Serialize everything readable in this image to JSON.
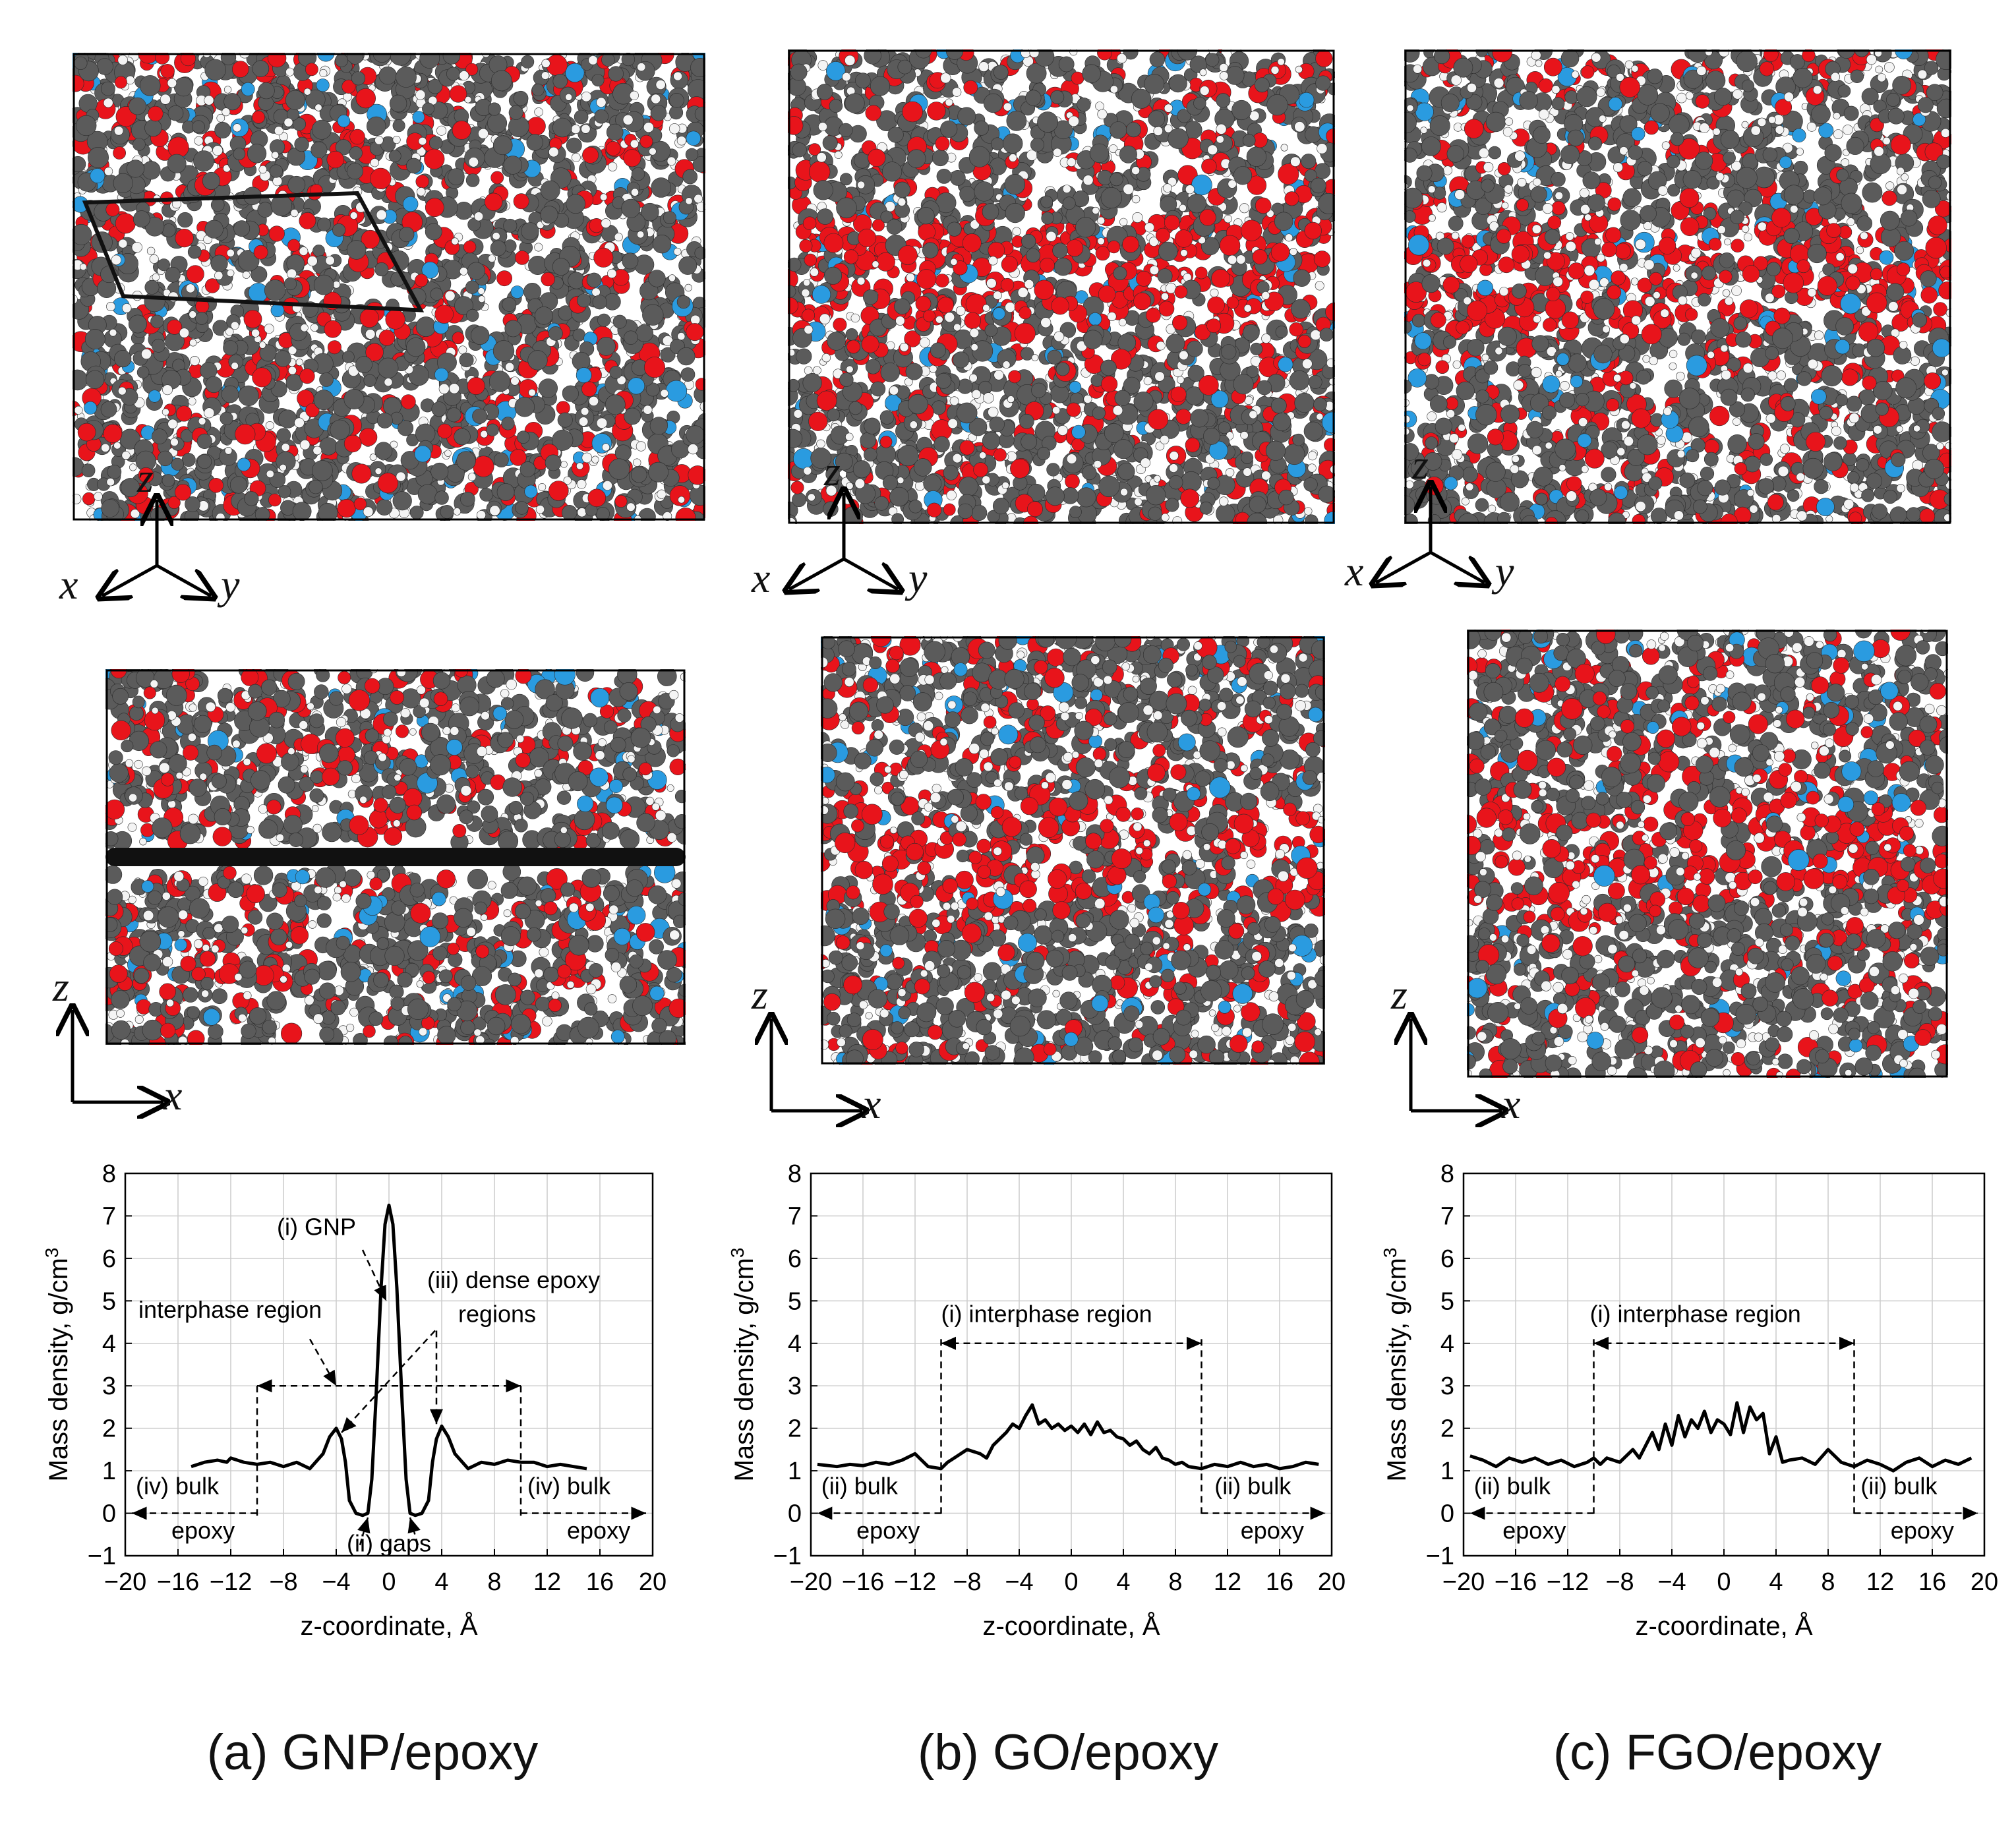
{
  "colors": {
    "carbon": "#5b5b5b",
    "oxygen": "#e8141b",
    "nitrogen": "#2a9be0",
    "hydrogen": "#f4f4f4",
    "graphene": "#111111",
    "line": "#000000",
    "grid": "#cccccc"
  },
  "axes_glyphs": {
    "z": "z",
    "x": "x",
    "y": "y"
  },
  "captions": [
    "(a) GNP/epoxy",
    "(b) GO/epoxy",
    "(c) FGO/epoxy"
  ],
  "chart_data": [
    {
      "type": "line",
      "panel": "(a) GNP/epoxy",
      "xlabel": "z-coordinate, Å",
      "ylabel": "Mass density, g/cm3",
      "xlim": [
        -20,
        20
      ],
      "ylim": [
        -1,
        8
      ],
      "xticks": [
        -20,
        -16,
        -12,
        -8,
        -4,
        0,
        4,
        8,
        12,
        16,
        20
      ],
      "yticks": [
        -1,
        0,
        1,
        2,
        3,
        4,
        5,
        6,
        7,
        8
      ],
      "grid": true,
      "series": [
        {
          "name": "GNP/epoxy density",
          "x": [
            -15,
            -14,
            -13,
            -12.3,
            -12,
            -11,
            -10,
            -9,
            -8,
            -7,
            -6,
            -5,
            -4.5,
            -4,
            -3.6,
            -3.3,
            -3,
            -2.5,
            -2,
            -1.6,
            -1.3,
            -1,
            -0.6,
            -0.3,
            0,
            0.3,
            0.6,
            1,
            1.3,
            1.6,
            2,
            2.5,
            3,
            3.3,
            3.6,
            4,
            4.5,
            5,
            6,
            7,
            8,
            9,
            10,
            11,
            12,
            13,
            14,
            15
          ],
          "y": [
            1.1,
            1.2,
            1.25,
            1.2,
            1.3,
            1.2,
            1.15,
            1.2,
            1.1,
            1.2,
            1.05,
            1.4,
            1.8,
            2.0,
            1.75,
            1.2,
            0.3,
            0.0,
            -0.05,
            0.0,
            0.8,
            2.6,
            5.3,
            6.8,
            7.25,
            6.8,
            5.3,
            2.6,
            0.8,
            0.0,
            -0.05,
            0.0,
            0.3,
            1.2,
            1.75,
            2.05,
            1.8,
            1.4,
            1.05,
            1.2,
            1.15,
            1.25,
            1.2,
            1.2,
            1.1,
            1.15,
            1.1,
            1.05
          ]
        }
      ],
      "annotations": [
        "(i) GNP",
        "(iii) dense epoxy",
        "regions",
        "interphase region",
        "(iv) bulk",
        "epoxy",
        "(ii) gaps",
        "(iv) bulk",
        "epoxy"
      ]
    },
    {
      "type": "line",
      "panel": "(b) GO/epoxy",
      "xlabel": "z-coordinate, Å",
      "ylabel": "Mass density, g/cm3",
      "xlim": [
        -20,
        20
      ],
      "ylim": [
        -1,
        8
      ],
      "xticks": [
        -20,
        -16,
        -12,
        -8,
        -4,
        0,
        4,
        8,
        12,
        16,
        20
      ],
      "yticks": [
        -1,
        0,
        1,
        2,
        3,
        4,
        5,
        6,
        7,
        8
      ],
      "grid": true,
      "series": [
        {
          "name": "GO/epoxy density",
          "x": [
            -19.5,
            -18,
            -17,
            -16,
            -15,
            -14,
            -13,
            -12,
            -11,
            -10,
            -9.5,
            -9,
            -8,
            -7,
            -6.5,
            -6,
            -5,
            -4.5,
            -4,
            -3.5,
            -3,
            -2.5,
            -2,
            -1.5,
            -1,
            -0.5,
            0,
            0.5,
            1,
            1.5,
            2,
            2.5,
            3,
            3.5,
            4,
            4.5,
            5,
            5.5,
            6,
            6.5,
            7,
            7.5,
            8,
            8.5,
            9,
            10,
            11,
            12,
            13,
            14,
            15,
            16,
            17,
            18,
            19
          ],
          "y": [
            1.15,
            1.1,
            1.15,
            1.12,
            1.2,
            1.15,
            1.25,
            1.4,
            1.1,
            1.05,
            1.2,
            1.3,
            1.5,
            1.4,
            1.3,
            1.6,
            1.9,
            2.1,
            2.0,
            2.3,
            2.55,
            2.1,
            2.2,
            2.0,
            2.1,
            1.95,
            2.05,
            1.9,
            2.1,
            1.85,
            2.15,
            1.9,
            1.95,
            1.8,
            1.75,
            1.6,
            1.7,
            1.5,
            1.4,
            1.55,
            1.3,
            1.25,
            1.15,
            1.2,
            1.1,
            1.05,
            1.15,
            1.1,
            1.2,
            1.1,
            1.15,
            1.05,
            1.1,
            1.2,
            1.15
          ]
        }
      ],
      "annotations": [
        "(i) interphase region",
        "(ii) bulk",
        "epoxy",
        "(ii) bulk",
        "epoxy"
      ]
    },
    {
      "type": "line",
      "panel": "(c) FGO/epoxy",
      "xlabel": "z-coordinate, Å",
      "ylabel": "Mass density, g/cm3",
      "xlim": [
        -20,
        20
      ],
      "ylim": [
        -1,
        8
      ],
      "xticks": [
        -20,
        -16,
        -12,
        -8,
        -4,
        0,
        4,
        8,
        12,
        16,
        20
      ],
      "yticks": [
        -1,
        0,
        1,
        2,
        3,
        4,
        5,
        6,
        7,
        8
      ],
      "grid": true,
      "series": [
        {
          "name": "FGO/epoxy density",
          "x": [
            -19.5,
            -18.5,
            -17.5,
            -16.5,
            -15.5,
            -14.5,
            -13.5,
            -12.5,
            -11.5,
            -10.5,
            -10,
            -9.5,
            -9,
            -8,
            -7,
            -6.5,
            -6,
            -5.5,
            -5,
            -4.5,
            -4,
            -3.5,
            -3,
            -2.5,
            -2,
            -1.5,
            -1,
            -0.5,
            0,
            0.5,
            1,
            1.5,
            2,
            2.5,
            3,
            3.5,
            4,
            4.5,
            5,
            6,
            7,
            8,
            9,
            10,
            11,
            12,
            13,
            14,
            15,
            16,
            17,
            18,
            19
          ],
          "y": [
            1.35,
            1.25,
            1.1,
            1.3,
            1.2,
            1.3,
            1.15,
            1.25,
            1.1,
            1.2,
            1.3,
            1.15,
            1.3,
            1.2,
            1.5,
            1.3,
            1.6,
            1.9,
            1.5,
            2.1,
            1.6,
            2.3,
            1.8,
            2.2,
            2.0,
            2.4,
            1.9,
            2.2,
            2.1,
            1.85,
            2.6,
            1.9,
            2.5,
            2.2,
            2.35,
            1.4,
            1.8,
            1.2,
            1.25,
            1.3,
            1.15,
            1.5,
            1.2,
            1.1,
            1.25,
            1.15,
            1.0,
            1.2,
            1.3,
            1.1,
            1.25,
            1.15,
            1.3
          ]
        }
      ],
      "annotations": [
        "(i) interphase region",
        "(ii) bulk",
        "epoxy",
        "(ii) bulk",
        "epoxy"
      ]
    }
  ]
}
